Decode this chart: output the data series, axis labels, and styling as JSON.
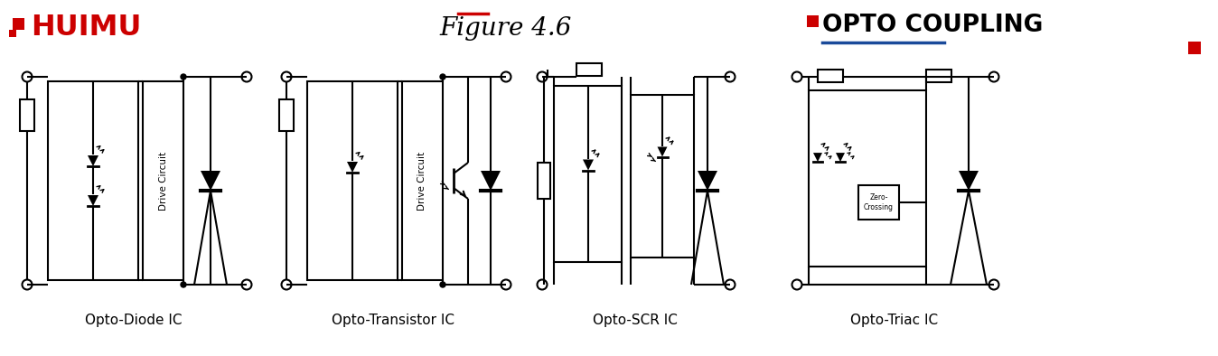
{
  "title": "Figure 4.6",
  "title_color": "#000000",
  "title_overline_color": "#cc0000",
  "brand": "HUIMU",
  "brand_color": "#cc0000",
  "right_title": "OPTO COUPLING",
  "right_title_color": "#000000",
  "right_underline_color": "#1a4a9a",
  "right_square_color": "#cc0000",
  "captions": [
    "Opto-Diode IC",
    "Opto-Transistor IC",
    "Opto-SCR IC",
    "Opto-Triac IC"
  ],
  "caption_color": "#000000",
  "bg_color": "#ffffff",
  "line_color": "#000000",
  "lw": 1.5
}
